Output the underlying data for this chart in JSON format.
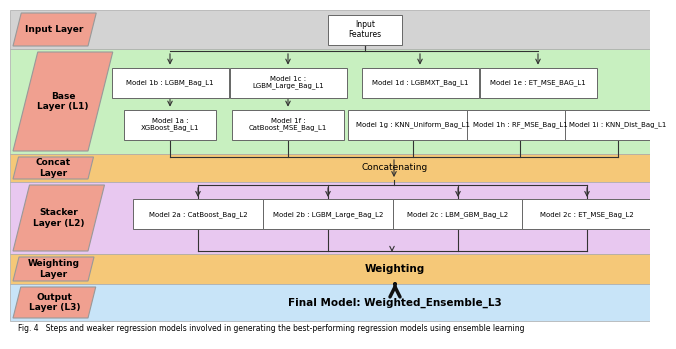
{
  "title_caption": "Fig. 4   Steps and weaker regression models involved in generating the best-performing regression models using ensemble learning",
  "band_colors": {
    "input": "#d3d3d3",
    "base": "#c8f0c0",
    "concat": "#f5c878",
    "stacker": "#e8c8f0",
    "weighting": "#f5c878",
    "output": "#c8e4f8"
  },
  "layer_label_color": "#f0a090",
  "layer_labels": {
    "input": "Input Layer",
    "base": "Base\nLayer (L1)",
    "concat": "Concat\nLayer",
    "stacker": "Stacker\nLayer (L2)",
    "weighting": "Weighting\nLayer",
    "output": "Output\nLayer (L3)"
  },
  "input_box_label": "Input\nFeatures",
  "base_models_top": [
    "Model 1b : LGBM_Bag_L1",
    "Model 1c :\nLGBM_Large_Bag_L1",
    "Model 1d : LGBMXT_Bag_L1",
    "Model 1e : ET_MSE_BAG_L1"
  ],
  "base_models_bot": [
    "Model 1a :\nXGBoost_Bag_L1",
    "Model 1f :\nCatBoost_MSE_Bag_L1",
    "Model 1g : KNN_Uniform_Bag_L1",
    "Model 1h : RF_MSE_Bag_L1",
    "Model 1i : KNN_Dist_Bag_L1"
  ],
  "concat_text": "Concatenating",
  "stacker_models": [
    "Model 2a : CatBoost_Bag_L2",
    "Model 2b : LGBM_Large_Bag_L2",
    "Model 2c : LBM_GBM_Bag_L2",
    "Model 2c : ET_MSE_Bag_L2"
  ],
  "weighting_text": "Weighting",
  "output_text": "Final Model: Weighted_Ensemble_L3",
  "box_edge": "#666666",
  "arrow_color": "#333333"
}
